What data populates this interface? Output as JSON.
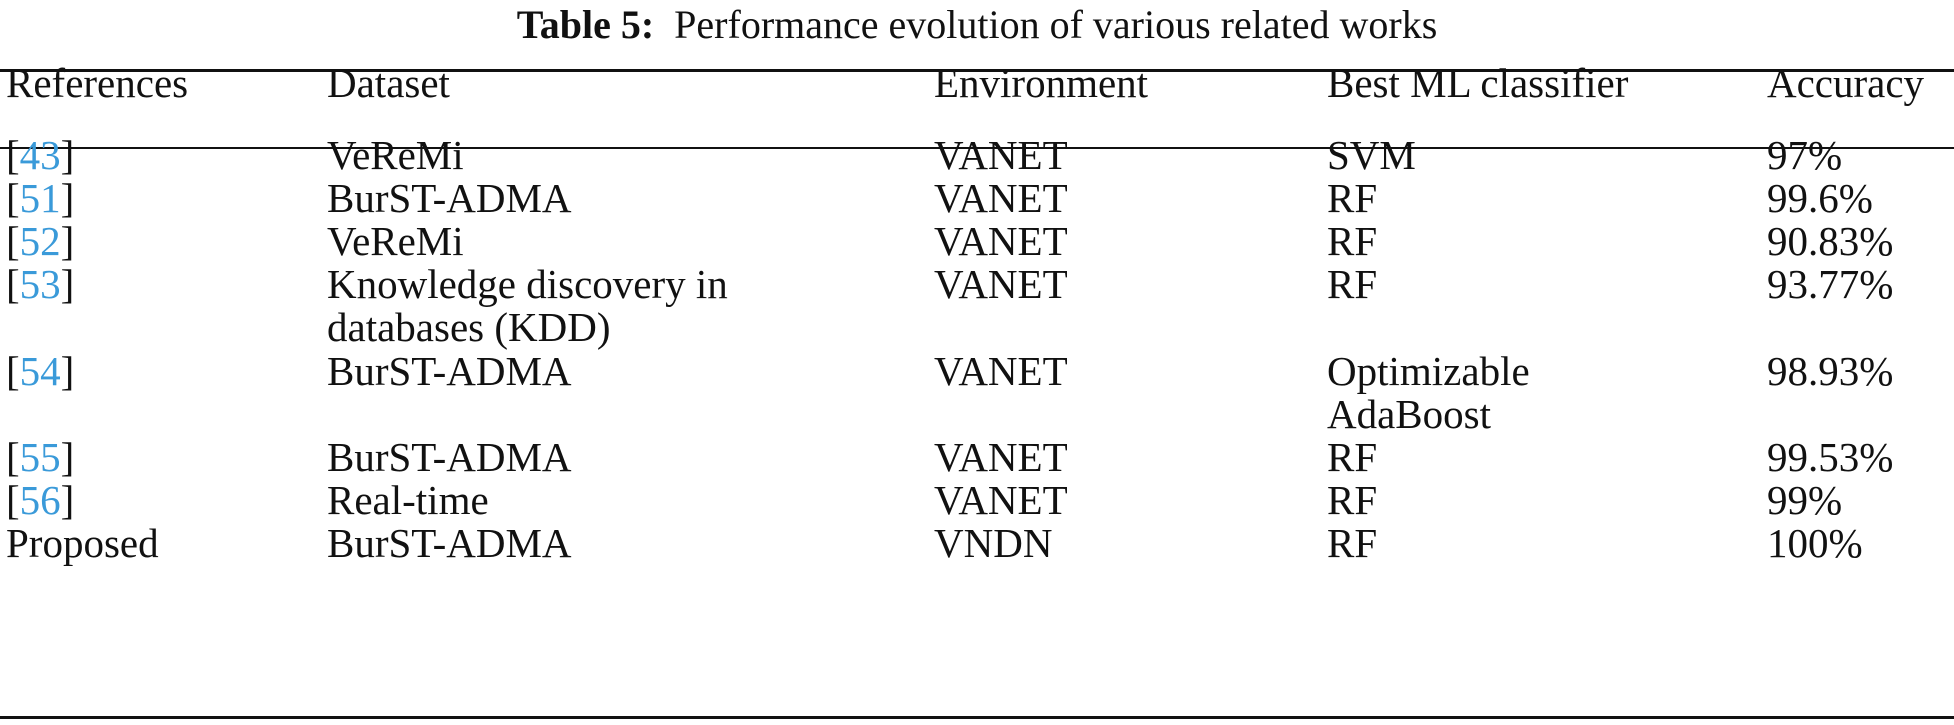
{
  "caption": {
    "label": "Table 5:",
    "text": "Performance evolution of various related works"
  },
  "table": {
    "headers": [
      "References",
      "Dataset",
      "Environment",
      "Best ML classifier",
      "Accuracy"
    ],
    "rows": [
      {
        "ref_open": "[",
        "ref_num": "43",
        "ref_close": "]",
        "dataset": [
          "VeReMi"
        ],
        "environment": "VANET",
        "classifier": [
          "SVM"
        ],
        "accuracy": "97%"
      },
      {
        "ref_open": "[",
        "ref_num": "51",
        "ref_close": "]",
        "dataset": [
          "BurST-ADMA"
        ],
        "environment": "VANET",
        "classifier": [
          "RF"
        ],
        "accuracy": "99.6%"
      },
      {
        "ref_open": "[",
        "ref_num": "52",
        "ref_close": "]",
        "dataset": [
          "VeReMi"
        ],
        "environment": "VANET",
        "classifier": [
          "RF"
        ],
        "accuracy": "90.83%"
      },
      {
        "ref_open": "[",
        "ref_num": "53",
        "ref_close": "]",
        "dataset": [
          "Knowledge discovery in",
          "databases (KDD)"
        ],
        "environment": "VANET",
        "classifier": [
          "RF"
        ],
        "accuracy": "93.77%"
      },
      {
        "ref_open": "[",
        "ref_num": "54",
        "ref_close": "]",
        "dataset": [
          "BurST-ADMA"
        ],
        "environment": "VANET",
        "classifier": [
          "Optimizable",
          "AdaBoost"
        ],
        "accuracy": "98.93%"
      },
      {
        "ref_open": "[",
        "ref_num": "55",
        "ref_close": "]",
        "dataset": [
          "BurST-ADMA"
        ],
        "environment": "VANET",
        "classifier": [
          "RF"
        ],
        "accuracy": "99.53%"
      },
      {
        "ref_open": "[",
        "ref_num": "56",
        "ref_close": "]",
        "dataset": [
          "Real-time"
        ],
        "environment": "VANET",
        "classifier": [
          "RF"
        ],
        "accuracy": "99%"
      },
      {
        "ref_text": "Proposed",
        "dataset": [
          "BurST-ADMA"
        ],
        "environment": "VNDN",
        "classifier": [
          "RF"
        ],
        "accuracy": "100%"
      }
    ]
  },
  "colors": {
    "text": "#111111",
    "reference_link": "#3a9ad9",
    "background": "#ffffff"
  }
}
